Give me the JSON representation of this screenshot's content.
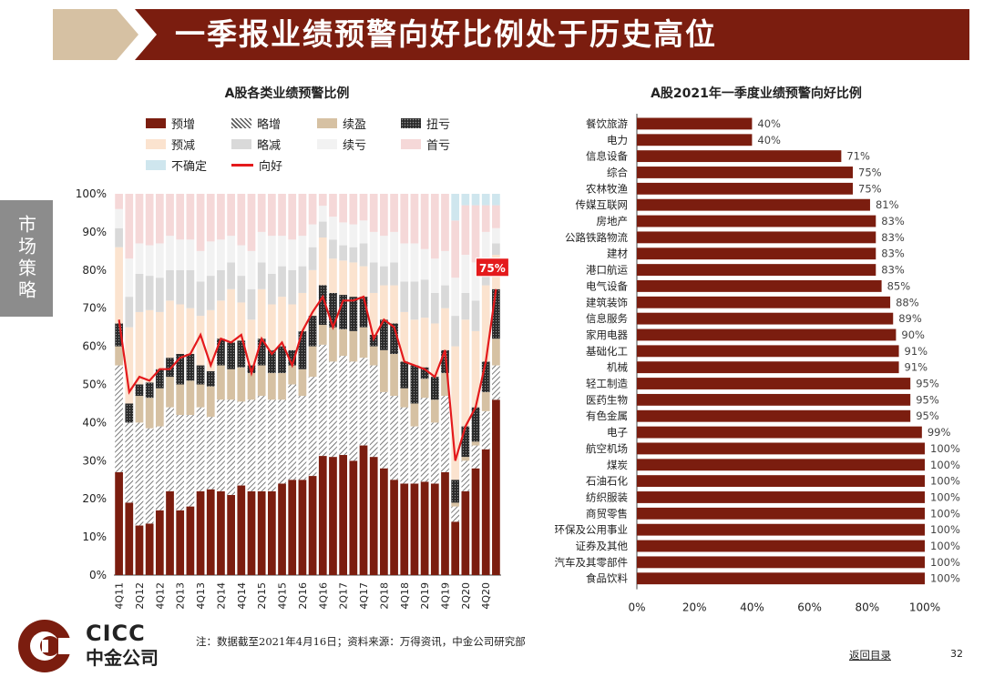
{
  "header": {
    "title": "一季报业绩预警向好比例处于历史高位"
  },
  "side": {
    "label": "市场策略"
  },
  "colors": {
    "banner": "#7b1d0f",
    "tan": "#d6c1a3",
    "accent_line": "#e41a1c",
    "bar": "#7b1d0f"
  },
  "footer": {
    "brand_en": "CICC",
    "brand_cn": "中金公司",
    "note": "注：数据截至2021年4月16日；资料来源：万得资讯，中金公司研究部",
    "return_link": "返回目录",
    "page_number": "32"
  },
  "chart_data": [
    {
      "type": "bar",
      "stacked": true,
      "title": "A股各类业绩预警比例",
      "x": [
        "4Q11",
        "1Q12",
        "2Q12",
        "3Q12",
        "4Q12",
        "1Q13",
        "2Q13",
        "3Q13",
        "4Q13",
        "1Q14",
        "2Q14",
        "3Q14",
        "4Q14",
        "1Q15",
        "2Q15",
        "3Q15",
        "4Q15",
        "1Q16",
        "2Q16",
        "3Q16",
        "4Q16",
        "1Q17",
        "2Q17",
        "3Q17",
        "4Q17",
        "1Q18",
        "2Q18",
        "3Q18",
        "4Q18",
        "1Q19",
        "2Q19",
        "3Q19",
        "4Q19",
        "1Q20",
        "2Q20",
        "3Q20",
        "4Q20",
        "1Q21"
      ],
      "tick_labels": [
        "4Q11",
        "2Q12",
        "4Q12",
        "2Q13",
        "4Q13",
        "2Q14",
        "4Q14",
        "2Q15",
        "4Q15",
        "2Q16",
        "4Q16",
        "2Q17",
        "4Q17",
        "2Q18",
        "4Q18",
        "2Q19",
        "4Q19",
        "2Q20",
        "4Q20"
      ],
      "yticks": [
        "0%",
        "10%",
        "20%",
        "30%",
        "40%",
        "50%",
        "60%",
        "70%",
        "80%",
        "90%",
        "100%"
      ],
      "ylim": [
        0,
        100
      ],
      "legend": [
        {
          "name": "预增",
          "pattern": "solid",
          "color": "#7b1d0f"
        },
        {
          "name": "略增",
          "pattern": "diagonal",
          "color": "#555555"
        },
        {
          "name": "续盈",
          "pattern": "solid",
          "color": "#d6c1a3"
        },
        {
          "name": "扭亏",
          "pattern": "dots",
          "color": "#2b2b2b"
        },
        {
          "name": "预减",
          "pattern": "solid",
          "color": "#fbe3cf"
        },
        {
          "name": "略减",
          "pattern": "solid",
          "color": "#d9d9d9"
        },
        {
          "name": "续亏",
          "pattern": "solid",
          "color": "#f2f2f2"
        },
        {
          "name": "首亏",
          "pattern": "solid",
          "color": "#f5d8d8"
        },
        {
          "name": "不确定",
          "pattern": "solid",
          "color": "#cfe6ee"
        },
        {
          "name": "向好",
          "pattern": "line",
          "color": "#e41a1c"
        }
      ],
      "series": [
        {
          "name": "预增",
          "values": [
            27,
            19,
            13,
            13.5,
            17,
            22,
            17,
            18,
            22,
            22.5,
            22,
            21,
            23.5,
            22,
            22,
            22,
            24,
            25,
            25,
            26,
            30,
            31,
            31.5,
            30,
            34,
            31,
            28,
            25,
            24,
            24,
            24.5,
            24,
            27,
            14,
            22,
            28,
            33,
            46
          ]
        },
        {
          "name": "略增",
          "values": [
            28,
            21,
            27,
            25,
            22,
            22,
            25,
            24,
            22,
            19,
            24,
            25,
            22,
            24,
            25,
            24,
            22,
            25,
            22,
            26,
            28,
            25,
            26,
            26,
            23,
            24,
            20,
            22,
            20,
            15,
            22,
            16,
            20,
            4,
            8,
            6,
            10,
            9
          ]
        },
        {
          "name": "续盈",
          "values": [
            5,
            0,
            7,
            8,
            10,
            8,
            8,
            9,
            6,
            8,
            9,
            8,
            9,
            7,
            8,
            7,
            7,
            5,
            7,
            8,
            5,
            9,
            7,
            8,
            8,
            5,
            11,
            11,
            5,
            6,
            5,
            6,
            6,
            1,
            1,
            1,
            5,
            7
          ]
        },
        {
          "name": "扭亏",
          "values": [
            6,
            5,
            3,
            4,
            5,
            5,
            8,
            7,
            5,
            4,
            7,
            7,
            7,
            2,
            7,
            6,
            7,
            4,
            10,
            8,
            10,
            9,
            9,
            9,
            8,
            3,
            8,
            8,
            7,
            10,
            3,
            6,
            6,
            6,
            8,
            9,
            8,
            13
          ]
        },
        {
          "name": "预减",
          "values": [
            20,
            20,
            19,
            19,
            15,
            15,
            13,
            12,
            13,
            16,
            10,
            14,
            10,
            12,
            13,
            12,
            13,
            12,
            10,
            12,
            12,
            9,
            9,
            9,
            8,
            11,
            9,
            10,
            13,
            12,
            13,
            14,
            11,
            35,
            28,
            20,
            20,
            9
          ]
        },
        {
          "name": "略减",
          "values": [
            5,
            8,
            10,
            9,
            9,
            8,
            9,
            10,
            9,
            9,
            8,
            7,
            7,
            8,
            7,
            8,
            8,
            9,
            7,
            6,
            4,
            5,
            4,
            4,
            6,
            8,
            5,
            6,
            8,
            10,
            10,
            8,
            6,
            8,
            7,
            8,
            6,
            3
          ]
        },
        {
          "name": "续亏",
          "values": [
            5,
            10,
            8,
            8,
            9,
            9,
            8,
            8,
            8,
            9,
            8,
            7,
            8,
            10,
            8,
            10,
            8,
            8,
            8,
            6,
            4,
            6,
            6,
            6,
            6,
            8,
            8,
            8,
            10,
            10,
            8,
            9,
            9,
            10,
            10,
            10,
            8,
            4
          ]
        },
        {
          "name": "首亏",
          "values": [
            4,
            17,
            13,
            13.5,
            13,
            11,
            12,
            12,
            15,
            12.5,
            12,
            11,
            13.5,
            15,
            10,
            11,
            11,
            12,
            11,
            8,
            3,
            6,
            7.5,
            8,
            7,
            10,
            11,
            10,
            13,
            13,
            14.5,
            17,
            15,
            15,
            13,
            15,
            7,
            6
          ]
        },
        {
          "name": "不确定",
          "values": [
            0,
            0,
            0,
            0,
            0,
            0,
            0,
            0,
            0,
            0,
            0,
            0,
            0,
            0,
            0,
            0,
            0,
            0,
            0,
            0,
            0,
            0,
            0,
            0,
            0,
            0,
            0,
            0,
            0,
            0,
            0,
            0,
            0,
            7,
            3,
            3,
            3,
            3
          ]
        },
        {
          "name": "向好",
          "type": "line",
          "values": [
            67,
            48,
            52,
            51,
            54,
            54,
            57,
            58,
            63,
            55,
            62,
            61,
            63,
            53,
            62,
            58,
            61,
            55,
            64,
            69,
            73,
            65,
            72,
            72,
            73,
            62,
            67,
            65,
            56,
            55,
            54,
            52,
            59,
            30,
            39,
            44,
            56,
            75
          ]
        }
      ],
      "annotation": "75%"
    },
    {
      "type": "bar",
      "orientation": "horizontal",
      "title": "A股2021年一季度业绩预警向好比例",
      "categories": [
        "餐饮旅游",
        "电力",
        "信息设备",
        "综合",
        "农林牧渔",
        "传媒互联网",
        "房地产",
        "公路铁路物流",
        "建材",
        "港口航运",
        "电气设备",
        "建筑装饰",
        "信息服务",
        "家用电器",
        "基础化工",
        "机械",
        "轻工制造",
        "医药生物",
        "有色金属",
        "电子",
        "航空机场",
        "煤炭",
        "石油石化",
        "纺织服装",
        "商贸零售",
        "环保及公用事业",
        "证券及其他",
        "汽车及其零部件",
        "食品饮料"
      ],
      "values": [
        40,
        40,
        71,
        75,
        75,
        81,
        83,
        83,
        83,
        83,
        85,
        88,
        89,
        90,
        91,
        91,
        95,
        95,
        95,
        99,
        100,
        100,
        100,
        100,
        100,
        100,
        100,
        100,
        100
      ],
      "value_labels": [
        "40%",
        "40%",
        "71%",
        "75%",
        "75%",
        "81%",
        "83%",
        "83%",
        "83%",
        "83%",
        "85%",
        "88%",
        "89%",
        "90%",
        "91%",
        "91%",
        "95%",
        "95%",
        "95%",
        "99%",
        "100%",
        "100%",
        "100%",
        "100%",
        "100%",
        "100%",
        "100%",
        "100%",
        "100%"
      ],
      "xticks": [
        "0%",
        "20%",
        "40%",
        "60%",
        "80%",
        "100%"
      ],
      "xlim": [
        0,
        100
      ]
    }
  ]
}
